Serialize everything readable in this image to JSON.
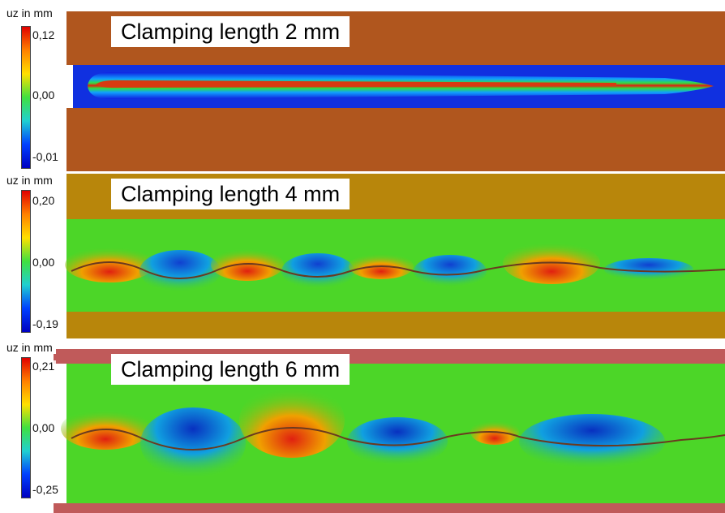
{
  "panels": [
    {
      "title": "Clamping length 2 mm",
      "colorbar_label": "uz in mm",
      "tick_max": "0,12",
      "tick_mid": "0,00",
      "tick_min": "-0,01"
    },
    {
      "title": "Clamping length 4 mm",
      "colorbar_label": "uz in mm",
      "tick_max": "0,20",
      "tick_mid": "0,00",
      "tick_min": "-0,19"
    },
    {
      "title": "Clamping length 6 mm",
      "colorbar_label": "uz in mm",
      "tick_max": "0,21",
      "tick_mid": "0,00",
      "tick_min": "-0,25"
    }
  ],
  "colors": {
    "clamp_panel1": "#b0561e",
    "clamp_panel2": "#b8860b",
    "clamp_panel3": "#c05a5a",
    "field_green": "#4cd628",
    "weld_red": "#e02010",
    "weld_blue": "#1040d0"
  }
}
